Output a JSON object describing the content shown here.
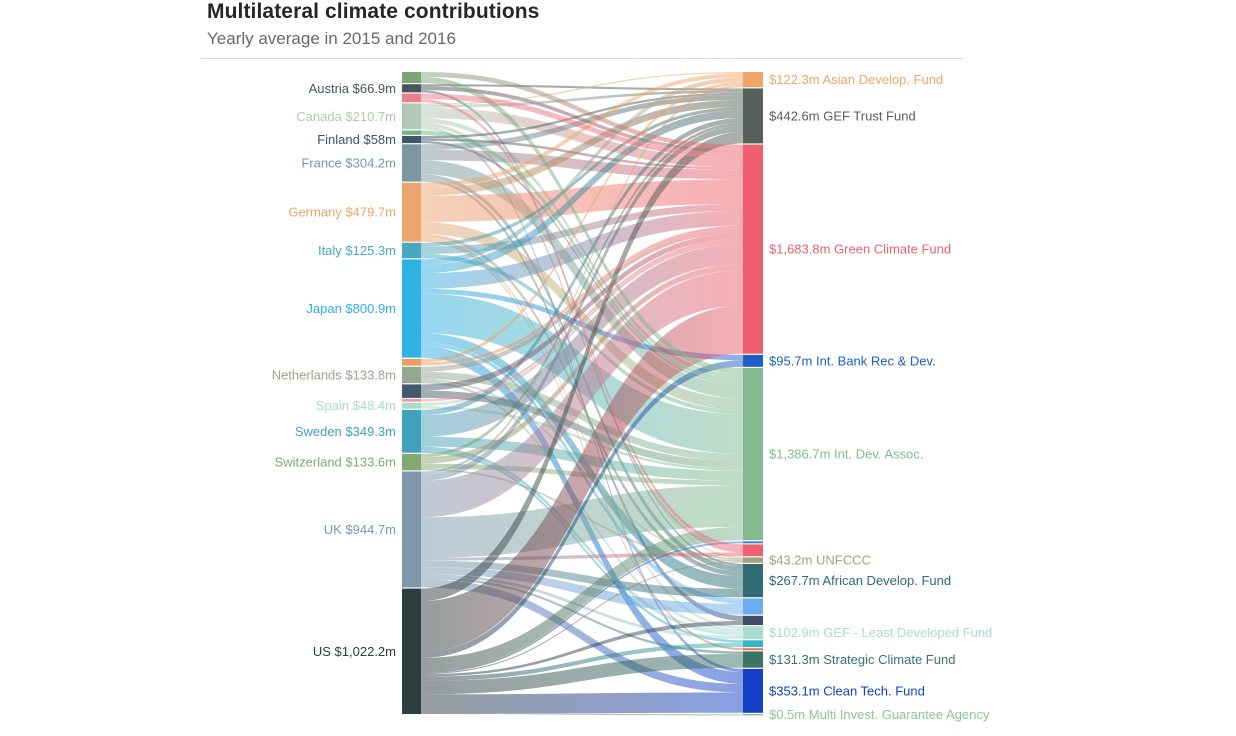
{
  "header": {
    "title": "Multilateral climate contributions",
    "subtitle": "Yearly average in 2015 and 2016"
  },
  "colors": {
    "background": "#ffffff",
    "title": "#262626",
    "subtitle": "#696969",
    "divider": "#dcdcdc"
  },
  "chart_data": {
    "type": "sankey",
    "title": "Multilateral climate contributions",
    "subtitle": "Yearly average in 2015 and 2016",
    "unit": "$m yearly average 2015-2016",
    "legend": "node and label colors encode entity; link ribbons blend source color into target color",
    "sources": [
      {
        "id": "l-unk1",
        "label": "",
        "value": 90,
        "color": "#7ea578"
      },
      {
        "id": "austria",
        "label": "Austria $66.9m",
        "value": 66.9,
        "color": "#46555e"
      },
      {
        "id": "l-unk2",
        "label": "",
        "value": 70,
        "color": "#ec7f8b"
      },
      {
        "id": "canada",
        "label": "Canada $210.7m",
        "value": 210.7,
        "color": "#b2c8b4"
      },
      {
        "id": "l-unk3",
        "label": "",
        "value": 35,
        "color": "#6cb586"
      },
      {
        "id": "finland",
        "label": "Finland $58m",
        "value": 58,
        "color": "#3e5666"
      },
      {
        "id": "france",
        "label": "France $304.2m",
        "value": 304.2,
        "color": "#7b97a0"
      },
      {
        "id": "germany",
        "label": "Germany $479.7m",
        "value": 479.7,
        "color": "#eba56e"
      },
      {
        "id": "italy",
        "label": "Italy $125.3m",
        "value": 125.3,
        "color": "#49a8bf"
      },
      {
        "id": "japan",
        "label": "Japan $800.9m",
        "value": 800.9,
        "color": "#2fb1e4"
      },
      {
        "id": "l-unk4",
        "label": "",
        "value": 55,
        "color": "#e8a062"
      },
      {
        "id": "netherlands",
        "label": "Netherlands $133.8m",
        "value": 133.8,
        "color": "#93a78f"
      },
      {
        "id": "l-unk5",
        "label": "",
        "value": 110,
        "color": "#44596b"
      },
      {
        "id": "l-unk6",
        "label": "",
        "value": 20,
        "color": "#ef91a0"
      },
      {
        "id": "spain",
        "label": "Spain $48.4m",
        "value": 48.4,
        "color": "#aadcc4"
      },
      {
        "id": "sweden",
        "label": "Sweden $349.3m",
        "value": 349.3,
        "color": "#41a0bb"
      },
      {
        "id": "switzerland",
        "label": "Switzerland $133.6m",
        "value": 133.6,
        "color": "#84a86f"
      },
      {
        "id": "uk",
        "label": "UK $944.7m",
        "value": 944.7,
        "color": "#7c97ae"
      },
      {
        "id": "us",
        "label": "US $1,022.2m",
        "value": 1022.2,
        "color": "#2e3d3e"
      }
    ],
    "targets": [
      {
        "id": "adf",
        "label": "$122.3m Asian Develop. Fund",
        "value": 122.3,
        "color": "#f0a568"
      },
      {
        "id": "gef",
        "label": "$442.6m GEF Trust Fund",
        "value": 442.6,
        "color": "#566159"
      },
      {
        "id": "gcf",
        "label": "$1,683.8m Green Climate Fund",
        "value": 1683.8,
        "color": "#f05f6e"
      },
      {
        "id": "ibrd",
        "label": "$95.7m Int. Bank Rec & Dev.",
        "value": 95.7,
        "color": "#1d5fc4"
      },
      {
        "id": "ida",
        "label": "$1,386.7m Int. Dev. Assoc.",
        "value": 1386.7,
        "color": "#82bb92"
      },
      {
        "id": "r-unk1",
        "label": "",
        "value": 15,
        "color": "#3a7bd5"
      },
      {
        "id": "r-unk2",
        "label": "",
        "value": 95,
        "color": "#ef6272"
      },
      {
        "id": "unfccc",
        "label": "$43.2m UNFCCC",
        "value": 43.2,
        "color": "#a3a27a"
      },
      {
        "id": "afdf",
        "label": "$267.7m African Develop. Fund",
        "value": 267.7,
        "color": "#2e6b72"
      },
      {
        "id": "r-unk3",
        "label": "",
        "value": 130,
        "color": "#6aaef0"
      },
      {
        "id": "r-unk4",
        "label": "",
        "value": 75,
        "color": "#3d4d66"
      },
      {
        "id": "gefldf",
        "label": "$102.9m GEF - Least Developed Fund",
        "value": 102.9,
        "color": "#aadcd0"
      },
      {
        "id": "r-unk5",
        "label": "",
        "value": 55,
        "color": "#35b5c2"
      },
      {
        "id": "r-unk6",
        "label": "",
        "value": 15,
        "color": "#e06540"
      },
      {
        "id": "scf",
        "label": "$131.3m Strategic Climate Fund",
        "value": 131.3,
        "color": "#3a7567"
      },
      {
        "id": "ctf",
        "label": "$353.1m Clean Tech. Fund",
        "value": 353.1,
        "color": "#1440c8"
      },
      {
        "id": "miga",
        "label": "$0.5m Multi Invest. Guarantee Agency",
        "value": 0.5,
        "color": "#8ec49a"
      }
    ],
    "links": [
      [
        "austria",
        "gcf",
        30
      ],
      [
        "austria",
        "gef",
        18
      ],
      [
        "austria",
        "unfccc",
        6
      ],
      [
        "austria",
        "afdf",
        13
      ],
      [
        "canada",
        "gcf",
        85
      ],
      [
        "canada",
        "ida",
        35
      ],
      [
        "canada",
        "gef",
        22
      ],
      [
        "canada",
        "ctf",
        25
      ],
      [
        "canada",
        "r-unk2",
        30
      ],
      [
        "canada",
        "adf",
        13
      ],
      [
        "finland",
        "gef",
        20
      ],
      [
        "finland",
        "gcf",
        20
      ],
      [
        "finland",
        "ida",
        18
      ],
      [
        "france",
        "ida",
        115
      ],
      [
        "france",
        "gcf",
        85
      ],
      [
        "france",
        "gef",
        45
      ],
      [
        "france",
        "afdf",
        35
      ],
      [
        "france",
        "r-unk4",
        25
      ],
      [
        "germany",
        "gcf",
        215
      ],
      [
        "germany",
        "ida",
        95
      ],
      [
        "germany",
        "gef",
        65
      ],
      [
        "germany",
        "adf",
        40
      ],
      [
        "germany",
        "afdf",
        30
      ],
      [
        "germany",
        "gefldf",
        20
      ],
      [
        "germany",
        "r-unk6",
        15
      ],
      [
        "italy",
        "gcf",
        60
      ],
      [
        "italy",
        "gef",
        30
      ],
      [
        "italy",
        "ida",
        35
      ],
      [
        "japan",
        "ida",
        330
      ],
      [
        "japan",
        "gcf",
        130
      ],
      [
        "japan",
        "ctf",
        95
      ],
      [
        "japan",
        "adf",
        45
      ],
      [
        "japan",
        "ibrd",
        40
      ],
      [
        "japan",
        "afdf",
        80
      ],
      [
        "japan",
        "gef",
        70
      ],
      [
        "japan",
        "r-unk3",
        30
      ],
      [
        "netherlands",
        "ida",
        60
      ],
      [
        "netherlands",
        "gcf",
        40
      ],
      [
        "netherlands",
        "gefldf",
        20
      ],
      [
        "netherlands",
        "unfccc",
        13
      ],
      [
        "spain",
        "gcf",
        26
      ],
      [
        "spain",
        "ida",
        22
      ],
      [
        "sweden",
        "gcf",
        175
      ],
      [
        "sweden",
        "ida",
        80
      ],
      [
        "sweden",
        "gef",
        45
      ],
      [
        "sweden",
        "gefldf",
        30
      ],
      [
        "sweden",
        "r-unk5",
        20
      ],
      [
        "switzerland",
        "gcf",
        52
      ],
      [
        "switzerland",
        "ida",
        40
      ],
      [
        "switzerland",
        "gef",
        28
      ],
      [
        "switzerland",
        "unfccc",
        14
      ],
      [
        "uk",
        "ida",
        345
      ],
      [
        "uk",
        "gcf",
        310
      ],
      [
        "uk",
        "ctf",
        70
      ],
      [
        "uk",
        "afdf",
        55
      ],
      [
        "uk",
        "gef",
        55
      ],
      [
        "uk",
        "gefldf",
        23
      ],
      [
        "uk",
        "adf",
        24
      ],
      [
        "uk",
        "r-unk3",
        60
      ],
      [
        "uk",
        "r-unk2",
        25
      ],
      [
        "uk",
        "scf",
        20
      ],
      [
        "us",
        "gcf",
        420
      ],
      [
        "us",
        "ctf",
        163
      ],
      [
        "us",
        "scf",
        111
      ],
      [
        "us",
        "gef",
        104
      ],
      [
        "us",
        "ida",
        110
      ],
      [
        "us",
        "unfccc",
        10
      ],
      [
        "us",
        "ibrd",
        50
      ],
      [
        "us",
        "r-unk4",
        20
      ],
      [
        "us",
        "r-unk1",
        15
      ],
      [
        "us",
        "r-unk5",
        35
      ],
      [
        "us",
        "miga",
        0.5
      ],
      [
        "l-unk1",
        "ida",
        50
      ],
      [
        "l-unk1",
        "gcf",
        40
      ],
      [
        "l-unk2",
        "gcf",
        45
      ],
      [
        "l-unk2",
        "r-unk2",
        25
      ],
      [
        "l-unk3",
        "ida",
        35
      ],
      [
        "l-unk4",
        "adf",
        30
      ],
      [
        "l-unk4",
        "gcf",
        25
      ],
      [
        "l-unk5",
        "ida",
        60
      ],
      [
        "l-unk5",
        "gcf",
        50
      ],
      [
        "l-unk6",
        "gcf",
        20
      ]
    ],
    "layout_hints": {
      "orientation": "left-to-right",
      "left_column": "contributing countries",
      "right_column": "recipient funds",
      "labels_left": "right-aligned beside node, node color",
      "labels_right": "left-aligned beside node, node color"
    }
  }
}
